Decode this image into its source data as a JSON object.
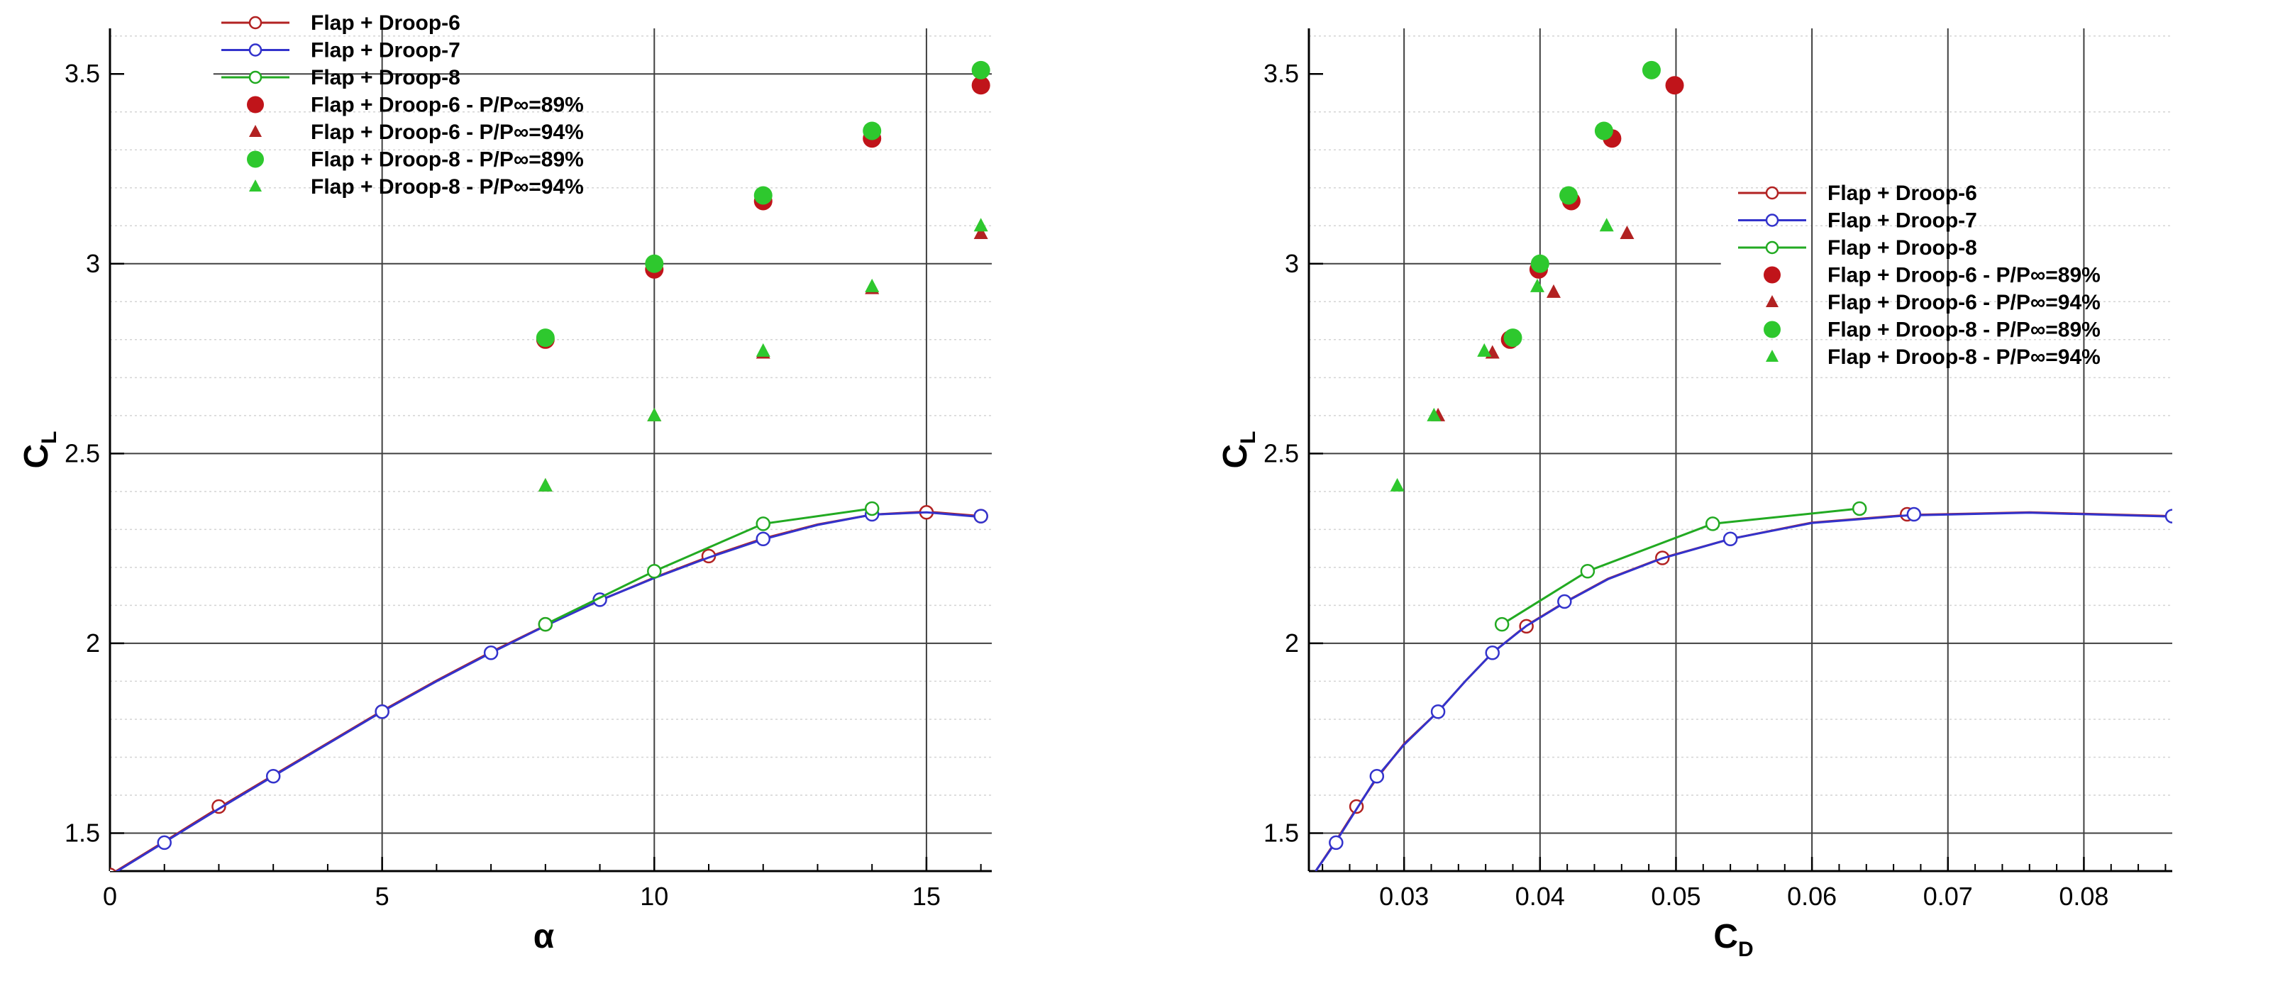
{
  "chart_data": [
    {
      "type": "line",
      "xlabel": "α",
      "ylabel": "C",
      "ylabel_sub": "L",
      "xlim": [
        0,
        16.2
      ],
      "ylim": [
        1.4,
        3.62
      ],
      "xticks": [
        0,
        5,
        10,
        15
      ],
      "yticks": [
        1.5,
        2,
        2.5,
        3,
        3.5
      ],
      "series": [
        {
          "name": "Flap + Droop-6",
          "kind": "line",
          "color": "#b22222",
          "x": [
            0,
            2,
            5,
            8,
            11,
            15,
            16
          ],
          "y": [
            1.39,
            1.57,
            1.82,
            2.05,
            2.23,
            2.345,
            2.335
          ],
          "curve_x": [
            0,
            1,
            2,
            3,
            4,
            5,
            6,
            7,
            8,
            9,
            10,
            11,
            12,
            13,
            14,
            15,
            16
          ],
          "curve_y": [
            1.39,
            1.478,
            1.567,
            1.652,
            1.737,
            1.822,
            1.902,
            1.977,
            2.047,
            2.113,
            2.173,
            2.228,
            2.276,
            2.313,
            2.339,
            2.347,
            2.335
          ]
        },
        {
          "name": "Flap + Droop-7",
          "kind": "line",
          "color": "#3333cc",
          "x": [
            1,
            3,
            5,
            7,
            9,
            12,
            14,
            16
          ],
          "y": [
            1.475,
            1.65,
            1.82,
            1.975,
            2.115,
            2.275,
            2.34,
            2.335
          ],
          "curve_x": [
            0,
            1,
            2,
            3,
            4,
            5,
            6,
            7,
            8,
            9,
            10,
            11,
            12,
            13,
            14,
            15,
            16
          ],
          "curve_y": [
            1.388,
            1.476,
            1.564,
            1.65,
            1.735,
            1.82,
            1.9,
            1.975,
            2.046,
            2.113,
            2.172,
            2.226,
            2.274,
            2.312,
            2.339,
            2.345,
            2.333
          ]
        },
        {
          "name": "Flap + Droop-8",
          "kind": "line",
          "color": "#22aa22",
          "x": [
            8,
            10,
            12,
            14
          ],
          "y": [
            2.05,
            2.19,
            2.315,
            2.355
          ],
          "curve_x": [
            8,
            10,
            12,
            14
          ],
          "curve_y": [
            2.05,
            2.19,
            2.315,
            2.355
          ]
        },
        {
          "name": "Flap + Droop-6 - P/P∞=89%",
          "kind": "dot",
          "color": "#c0141a",
          "x": [
            8,
            10,
            12,
            14,
            16
          ],
          "y": [
            2.8,
            2.985,
            3.165,
            3.33,
            3.47
          ]
        },
        {
          "name": "Flap + Droop-6 - P/P∞=94%",
          "kind": "triangle",
          "color": "#b22222",
          "x": [
            8,
            10,
            12,
            14,
            16
          ],
          "y": [
            2.415,
            2.6,
            2.765,
            2.935,
            3.08
          ]
        },
        {
          "name": "Flap + Droop-8 - P/P∞=89%",
          "kind": "dot",
          "color": "#2ec82e",
          "x": [
            8,
            10,
            12,
            14,
            16
          ],
          "y": [
            2.805,
            3.0,
            3.18,
            3.35,
            3.51
          ]
        },
        {
          "name": "Flap + Droop-8 - P/P∞=94%",
          "kind": "triangle",
          "color": "#2ec82e",
          "x": [
            8,
            10,
            12,
            14,
            16
          ],
          "y": [
            2.415,
            2.6,
            2.77,
            2.94,
            3.1
          ]
        }
      ],
      "legend": "top-left"
    },
    {
      "type": "line",
      "xlabel": "C",
      "xlabel_sub": "D",
      "ylabel": "C",
      "ylabel_sub": "L",
      "xlim": [
        0.023,
        0.0865
      ],
      "ylim": [
        1.4,
        3.62
      ],
      "xticks": [
        0.03,
        0.04,
        0.05,
        0.06,
        0.07,
        0.08
      ],
      "xtick_labels": [
        "0.03",
        "0.04",
        "0.05",
        "0.06",
        "0.07",
        "0.08"
      ],
      "yticks": [
        1.5,
        2,
        2.5,
        3,
        3.5
      ],
      "series": [
        {
          "name": "Flap + Droop-6",
          "kind": "line",
          "color": "#b22222",
          "x": [
            0.0265,
            0.039,
            0.049,
            0.067
          ],
          "y": [
            1.57,
            2.045,
            2.225,
            2.34
          ],
          "curve_x": [
            0.0235,
            0.025,
            0.0265,
            0.028,
            0.03,
            0.0325,
            0.0345,
            0.0365,
            0.039,
            0.042,
            0.045,
            0.049,
            0.054,
            0.06,
            0.067,
            0.076,
            0.0865
          ],
          "curve_y": [
            1.4,
            1.48,
            1.565,
            1.645,
            1.735,
            1.82,
            1.9,
            1.975,
            2.047,
            2.112,
            2.17,
            2.225,
            2.275,
            2.318,
            2.338,
            2.345,
            2.335
          ]
        },
        {
          "name": "Flap + Droop-7",
          "kind": "line",
          "color": "#3333cc",
          "x": [
            0.025,
            0.028,
            0.0325,
            0.0365,
            0.0418,
            0.054,
            0.0675,
            0.0865
          ],
          "y": [
            1.475,
            1.65,
            1.82,
            1.975,
            2.11,
            2.275,
            2.34,
            2.335
          ],
          "curve_x": [
            0.0235,
            0.025,
            0.0265,
            0.028,
            0.03,
            0.0325,
            0.0345,
            0.0365,
            0.039,
            0.042,
            0.045,
            0.049,
            0.054,
            0.06,
            0.067,
            0.076,
            0.0865
          ],
          "curve_y": [
            1.4,
            1.478,
            1.563,
            1.648,
            1.733,
            1.82,
            1.9,
            1.975,
            2.046,
            2.111,
            2.169,
            2.224,
            2.275,
            2.317,
            2.337,
            2.344,
            2.334
          ]
        },
        {
          "name": "Flap + Droop-8",
          "kind": "line",
          "color": "#22aa22",
          "x": [
            0.0372,
            0.0435,
            0.0527,
            0.0635
          ],
          "y": [
            2.05,
            2.19,
            2.315,
            2.355
          ],
          "curve_x": [
            0.0372,
            0.0435,
            0.0527,
            0.0635
          ],
          "curve_y": [
            2.05,
            2.19,
            2.315,
            2.355
          ]
        },
        {
          "name": "Flap + Droop-6 - P/P∞=89%",
          "kind": "dot",
          "color": "#c0141a",
          "x": [
            0.0378,
            0.0399,
            0.0423,
            0.0453,
            0.0499
          ],
          "y": [
            2.8,
            2.985,
            3.165,
            3.33,
            3.47
          ]
        },
        {
          "name": "Flap + Droop-6 - P/P∞=94%",
          "kind": "triangle",
          "color": "#b22222",
          "x": [
            0.0325,
            0.0365,
            0.041,
            0.0464
          ],
          "y": [
            2.6,
            2.765,
            2.925,
            3.08
          ]
        },
        {
          "name": "Flap + Droop-8 - P/P∞=89%",
          "kind": "dot",
          "color": "#2ec82e",
          "x": [
            0.038,
            0.04,
            0.0421,
            0.0447,
            0.0482
          ],
          "y": [
            2.805,
            3.0,
            3.18,
            3.35,
            3.51
          ]
        },
        {
          "name": "Flap + Droop-8 - P/P∞=94%",
          "kind": "triangle",
          "color": "#2ec82e",
          "x": [
            0.0295,
            0.0322,
            0.0359,
            0.0398,
            0.0449
          ],
          "y": [
            2.415,
            2.6,
            2.77,
            2.94,
            3.1
          ]
        }
      ],
      "legend": "right"
    }
  ]
}
